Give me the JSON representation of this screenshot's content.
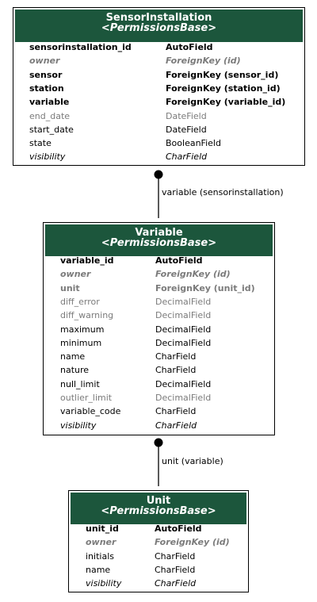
{
  "models": [
    {
      "name": "SensorInstallation",
      "base": "<PermissionsBase>",
      "fields": [
        {
          "name": "sensorinstallation_id",
          "type": "AutoField",
          "style": "row-bold"
        },
        {
          "name": "owner",
          "type": "ForeignKey (id)",
          "style": "row-gray-italic-bold"
        },
        {
          "name": "sensor",
          "type": "ForeignKey (sensor_id)",
          "style": "row-bold"
        },
        {
          "name": "station",
          "type": "ForeignKey (station_id)",
          "style": "row-bold"
        },
        {
          "name": "variable",
          "type": "ForeignKey (variable_id)",
          "style": "row-bold"
        },
        {
          "name": "end_date",
          "type": "DateField",
          "style": "row-gray"
        },
        {
          "name": "start_date",
          "type": "DateField",
          "style": "row-normal"
        },
        {
          "name": "state",
          "type": "BooleanField",
          "style": "row-normal"
        },
        {
          "name": "visibility",
          "type": "CharField",
          "style": "row-italic-black"
        }
      ]
    },
    {
      "name": "Variable",
      "base": "<PermissionsBase>",
      "fields": [
        {
          "name": "variable_id",
          "type": "AutoField",
          "style": "row-bold"
        },
        {
          "name": "owner",
          "type": "ForeignKey (id)",
          "style": "row-gray-italic-bold"
        },
        {
          "name": "unit",
          "type": "ForeignKey (unit_id)",
          "style": "row-gray-bold"
        },
        {
          "name": "diff_error",
          "type": "DecimalField",
          "style": "row-gray"
        },
        {
          "name": "diff_warning",
          "type": "DecimalField",
          "style": "row-gray"
        },
        {
          "name": "maximum",
          "type": "DecimalField",
          "style": "row-normal"
        },
        {
          "name": "minimum",
          "type": "DecimalField",
          "style": "row-normal"
        },
        {
          "name": "name",
          "type": "CharField",
          "style": "row-normal"
        },
        {
          "name": "nature",
          "type": "CharField",
          "style": "row-normal"
        },
        {
          "name": "null_limit",
          "type": "DecimalField",
          "style": "row-normal"
        },
        {
          "name": "outlier_limit",
          "type": "DecimalField",
          "style": "row-gray"
        },
        {
          "name": "variable_code",
          "type": "CharField",
          "style": "row-normal"
        },
        {
          "name": "visibility",
          "type": "CharField",
          "style": "row-italic-black"
        }
      ]
    },
    {
      "name": "Unit",
      "base": "<PermissionsBase>",
      "fields": [
        {
          "name": "unit_id",
          "type": "AutoField",
          "style": "row-bold"
        },
        {
          "name": "owner",
          "type": "ForeignKey (id)",
          "style": "row-gray-italic-bold"
        },
        {
          "name": "initials",
          "type": "CharField",
          "style": "row-normal"
        },
        {
          "name": "name",
          "type": "CharField",
          "style": "row-normal"
        },
        {
          "name": "visibility",
          "type": "CharField",
          "style": "row-italic-black"
        }
      ]
    }
  ],
  "relations": [
    {
      "label": "variable (sensorinstallation)"
    },
    {
      "label": "unit (variable)"
    }
  ],
  "colors": {
    "header": "#1c563c",
    "header_text": "#ffffff",
    "muted_text": "#7b7b7b",
    "border": "#000000"
  }
}
